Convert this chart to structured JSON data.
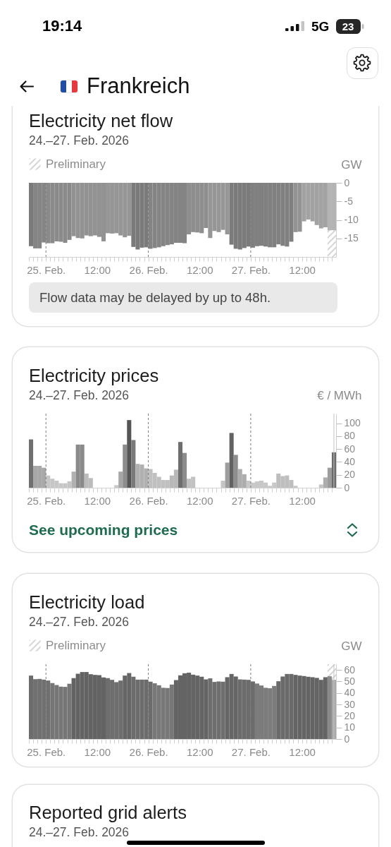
{
  "chart_data": [
    {
      "type": "other",
      "title": "Frankreich",
      "annotations": [
        "19:14",
        "5G",
        "23"
      ]
    },
    {
      "type": "bar",
      "title": "Electricity net flow",
      "subtitle": "24.–27. Feb. 2026",
      "ylabel": "GW",
      "legend": "top left",
      "x": [
        "2026-02-24T20:30",
        "2026-02-24T21:30",
        "2026-02-24T22:30",
        "2026-02-24T23:30",
        "2026-02-25T00:30",
        "2026-02-25T01:30",
        "2026-02-25T02:30",
        "2026-02-25T03:30",
        "2026-02-25T04:30",
        "2026-02-25T05:30",
        "2026-02-25T06:30",
        "2026-02-25T07:30",
        "2026-02-25T08:30",
        "2026-02-25T09:30",
        "2026-02-25T10:30",
        "2026-02-25T11:30",
        "2026-02-25T12:30",
        "2026-02-25T13:30",
        "2026-02-25T14:30",
        "2026-02-25T15:30",
        "2026-02-25T16:30",
        "2026-02-25T17:30",
        "2026-02-25T18:30",
        "2026-02-25T19:30",
        "2026-02-25T20:30",
        "2026-02-25T21:30",
        "2026-02-25T22:30",
        "2026-02-25T23:30",
        "2026-02-26T00:30",
        "2026-02-26T01:30",
        "2026-02-26T02:30",
        "2026-02-26T03:30",
        "2026-02-26T04:30",
        "2026-02-26T05:30",
        "2026-02-26T06:30",
        "2026-02-26T07:30",
        "2026-02-26T08:30",
        "2026-02-26T09:30",
        "2026-02-26T10:30",
        "2026-02-26T11:30",
        "2026-02-26T12:30",
        "2026-02-26T13:30",
        "2026-02-26T14:30",
        "2026-02-26T15:30",
        "2026-02-26T16:30",
        "2026-02-26T17:30",
        "2026-02-26T18:30",
        "2026-02-26T19:30",
        "2026-02-26T20:30",
        "2026-02-26T21:30",
        "2026-02-26T22:30",
        "2026-02-26T23:30",
        "2026-02-27T00:30",
        "2026-02-27T01:30",
        "2026-02-27T02:30",
        "2026-02-27T03:30",
        "2026-02-27T04:30",
        "2026-02-27T05:30",
        "2026-02-27T06:30",
        "2026-02-27T07:30",
        "2026-02-27T08:30",
        "2026-02-27T09:30",
        "2026-02-27T10:30",
        "2026-02-27T11:30",
        "2026-02-27T12:30",
        "2026-02-27T13:30",
        "2026-02-27T14:30",
        "2026-02-27T15:30",
        "2026-02-27T16:30",
        "2026-02-27T17:30",
        "2026-02-27T18:30",
        "2026-02-27T19:30"
      ],
      "values": [
        -17.1,
        -17.7,
        -17.7,
        -16.1,
        -16.3,
        -16.3,
        -15.8,
        -15.9,
        -16.2,
        -15.4,
        -14.4,
        -14.9,
        -15.0,
        -14.2,
        -14.4,
        -14.2,
        -14.6,
        -15.8,
        -13.6,
        -13.7,
        -13.6,
        -14.2,
        -14.7,
        -14.3,
        -17.3,
        -18.0,
        -17.5,
        -17.4,
        -17.8,
        -17.6,
        -17.4,
        -17.1,
        -16.8,
        -16.6,
        -16.2,
        -16.2,
        -16.3,
        -13.9,
        -13.3,
        -13.4,
        -13.6,
        -12.2,
        -14.9,
        -13.0,
        -13.3,
        -12.7,
        -13.9,
        -16.7,
        -17.8,
        -18.0,
        -17.6,
        -17.2,
        -17.5,
        -17.1,
        -17.0,
        -17.2,
        -17.4,
        -17.4,
        -16.6,
        -17.0,
        -17.2,
        -15.9,
        -13.3,
        -13.2,
        -10.4,
        -9.9,
        -10.4,
        -11.4,
        -12.3,
        -12.0,
        -12.8,
        -12.8
      ],
      "colors": [
        "#7a7a7a",
        "#858585",
        "#858585",
        "#858585",
        "#8a8a8a",
        "#8a8a8a",
        "#8a8a8a",
        "#8a8a8a",
        "#8a8a8a",
        "#8a8a8a",
        "#929292",
        "#929292",
        "#929292",
        "#929292",
        "#929292",
        "#929292",
        "#929292",
        "#929292",
        "#969696",
        "#969696",
        "#969696",
        "#969696",
        "#969696",
        "#969696",
        "#7a7a7a",
        "#7a7a7a",
        "#7a7a7a",
        "#7a7a7a",
        "#848484",
        "#848484",
        "#848484",
        "#848484",
        "#848484",
        "#848484",
        "#848484",
        "#848484",
        "#848484",
        "#8e8e8e",
        "#8e8e8e",
        "#8e8e8e",
        "#8e8e8e",
        "#8e8e8e",
        "#969696",
        "#969696",
        "#969696",
        "#969696",
        "#969696",
        "#7b7b7b",
        "#7b7b7b",
        "#7b7b7b",
        "#7b7b7b",
        "#7b7b7b",
        "#808080",
        "#808080",
        "#808080",
        "#808080",
        "#808080",
        "#808080",
        "#808080",
        "#808080",
        "#808080",
        "#808080",
        "#939393",
        "#939393",
        "#a2a2a2",
        "#a2a2a2",
        "#a2a2a2",
        "#a2a2a2",
        "#a2a2a2",
        "#a2a2a2",
        "#b4b4b4",
        "#b4b4b4"
      ],
      "xlim": [
        "2026-02-24T20:00",
        "2026-02-27T20:00"
      ],
      "xticks": [
        {
          "value": "2026-02-24T20:00",
          "label": null
        },
        {
          "value": "2026-02-24T21:00",
          "label": null
        },
        {
          "value": "2026-02-24T22:00",
          "label": null
        },
        {
          "value": "2026-02-24T23:00",
          "label": null
        },
        {
          "value": "2026-02-25T00:00",
          "label": "25. Feb."
        },
        {
          "value": "2026-02-25T01:00",
          "label": null
        },
        {
          "value": "2026-02-25T02:00",
          "label": null
        },
        {
          "value": "2026-02-25T03:00",
          "label": null
        },
        {
          "value": "2026-02-25T04:00",
          "label": null
        },
        {
          "value": "2026-02-25T05:00",
          "label": null
        },
        {
          "value": "2026-02-25T06:00",
          "label": null
        },
        {
          "value": "2026-02-25T07:00",
          "label": null
        },
        {
          "value": "2026-02-25T08:00",
          "label": null
        },
        {
          "value": "2026-02-25T09:00",
          "label": null
        },
        {
          "value": "2026-02-25T10:00",
          "label": null
        },
        {
          "value": "2026-02-25T11:00",
          "label": null
        },
        {
          "value": "2026-02-25T12:00",
          "label": "12:00"
        },
        {
          "value": "2026-02-25T13:00",
          "label": null
        },
        {
          "value": "2026-02-25T14:00",
          "label": null
        },
        {
          "value": "2026-02-25T15:00",
          "label": null
        },
        {
          "value": "2026-02-25T16:00",
          "label": null
        },
        {
          "value": "2026-02-25T17:00",
          "label": null
        },
        {
          "value": "2026-02-25T18:00",
          "label": null
        },
        {
          "value": "2026-02-25T19:00",
          "label": null
        },
        {
          "value": "2026-02-25T20:00",
          "label": null
        },
        {
          "value": "2026-02-25T21:00",
          "label": null
        },
        {
          "value": "2026-02-25T22:00",
          "label": null
        },
        {
          "value": "2026-02-25T23:00",
          "label": null
        },
        {
          "value": "2026-02-26T00:00",
          "label": "26. Feb."
        },
        {
          "value": "2026-02-26T01:00",
          "label": null
        },
        {
          "value": "2026-02-26T02:00",
          "label": null
        },
        {
          "value": "2026-02-26T03:00",
          "label": null
        },
        {
          "value": "2026-02-26T04:00",
          "label": null
        },
        {
          "value": "2026-02-26T05:00",
          "label": null
        },
        {
          "value": "2026-02-26T06:00",
          "label": null
        },
        {
          "value": "2026-02-26T07:00",
          "label": null
        },
        {
          "value": "2026-02-26T08:00",
          "label": null
        },
        {
          "value": "2026-02-26T09:00",
          "label": null
        },
        {
          "value": "2026-02-26T10:00",
          "label": null
        },
        {
          "value": "2026-02-26T11:00",
          "label": null
        },
        {
          "value": "2026-02-26T12:00",
          "label": "12:00"
        },
        {
          "value": "2026-02-26T13:00",
          "label": null
        },
        {
          "value": "2026-02-26T14:00",
          "label": null
        },
        {
          "value": "2026-02-26T15:00",
          "label": null
        },
        {
          "value": "2026-02-26T16:00",
          "label": null
        },
        {
          "value": "2026-02-26T17:00",
          "label": null
        },
        {
          "value": "2026-02-26T18:00",
          "label": null
        },
        {
          "value": "2026-02-26T19:00",
          "label": null
        },
        {
          "value": "2026-02-26T20:00",
          "label": null
        },
        {
          "value": "2026-02-26T21:00",
          "label": null
        },
        {
          "value": "2026-02-26T22:00",
          "label": null
        },
        {
          "value": "2026-02-26T23:00",
          "label": null
        },
        {
          "value": "2026-02-27T00:00",
          "label": "27. Feb."
        },
        {
          "value": "2026-02-27T01:00",
          "label": null
        },
        {
          "value": "2026-02-27T02:00",
          "label": null
        },
        {
          "value": "2026-02-27T03:00",
          "label": null
        },
        {
          "value": "2026-02-27T04:00",
          "label": null
        },
        {
          "value": "2026-02-27T05:00",
          "label": null
        },
        {
          "value": "2026-02-27T06:00",
          "label": null
        },
        {
          "value": "2026-02-27T07:00",
          "label": null
        },
        {
          "value": "2026-02-27T08:00",
          "label": null
        },
        {
          "value": "2026-02-27T09:00",
          "label": null
        },
        {
          "value": "2026-02-27T10:00",
          "label": null
        },
        {
          "value": "2026-02-27T11:00",
          "label": null
        },
        {
          "value": "2026-02-27T12:00",
          "label": "12:00"
        },
        {
          "value": "2026-02-27T13:00",
          "label": null
        },
        {
          "value": "2026-02-27T14:00",
          "label": null
        },
        {
          "value": "2026-02-27T15:00",
          "label": null
        },
        {
          "value": "2026-02-27T16:00",
          "label": null
        },
        {
          "value": "2026-02-27T17:00",
          "label": null
        },
        {
          "value": "2026-02-27T18:00",
          "label": null
        },
        {
          "value": "2026-02-27T19:00",
          "label": null
        }
      ],
      "ylim": [
        -20,
        0
      ],
      "yticks": [
        0,
        -5,
        -10,
        -15
      ],
      "ref_lines": [
        {
          "axis": "x",
          "value": "2026-02-25T00:00",
          "line_style": "dashed",
          "color": "#7c7c7c"
        },
        {
          "axis": "x",
          "value": "2026-02-26T00:00",
          "line_style": "dashed",
          "color": "#7c7c7c"
        },
        {
          "axis": "x",
          "value": "2026-02-27T00:00",
          "line_style": "dashed",
          "color": "#7c7c7c"
        }
      ],
      "bands": [
        {
          "axis": "x",
          "from": "2026-02-27T18:00",
          "to": "2026-02-27T20:00",
          "label": "Preliminary",
          "color": "#c4c4c4"
        }
      ],
      "annotations": [
        "Flow data may be delayed by up to 48h."
      ]
    },
    {
      "type": "bar",
      "title": "Electricity prices",
      "subtitle": "24.–27. Feb. 2026",
      "ylabel": "€ / MWh",
      "x": [
        "2026-02-24T20:30",
        "2026-02-24T21:30",
        "2026-02-24T22:30",
        "2026-02-24T23:30",
        "2026-02-25T00:30",
        "2026-02-25T01:30",
        "2026-02-25T02:30",
        "2026-02-25T03:30",
        "2026-02-25T04:30",
        "2026-02-25T05:30",
        "2026-02-25T06:30",
        "2026-02-25T07:30",
        "2026-02-25T08:30",
        "2026-02-25T09:30",
        "2026-02-25T10:30",
        "2026-02-25T11:30",
        "2026-02-25T12:30",
        "2026-02-25T13:30",
        "2026-02-25T14:30",
        "2026-02-25T15:30",
        "2026-02-25T16:30",
        "2026-02-25T17:30",
        "2026-02-25T18:30",
        "2026-02-25T19:30",
        "2026-02-25T20:30",
        "2026-02-25T21:30",
        "2026-02-25T22:30",
        "2026-02-25T23:30",
        "2026-02-26T00:30",
        "2026-02-26T01:30",
        "2026-02-26T02:30",
        "2026-02-26T03:30",
        "2026-02-26T04:30",
        "2026-02-26T05:30",
        "2026-02-26T06:30",
        "2026-02-26T07:30",
        "2026-02-26T08:30",
        "2026-02-26T09:30",
        "2026-02-26T10:30",
        "2026-02-26T11:30",
        "2026-02-26T12:30",
        "2026-02-26T13:30",
        "2026-02-26T14:30",
        "2026-02-26T15:30",
        "2026-02-26T16:30",
        "2026-02-26T17:30",
        "2026-02-26T18:30",
        "2026-02-26T19:30",
        "2026-02-26T20:30",
        "2026-02-26T21:30",
        "2026-02-26T22:30",
        "2026-02-26T23:30",
        "2026-02-27T00:30",
        "2026-02-27T01:30",
        "2026-02-27T02:30",
        "2026-02-27T03:30",
        "2026-02-27T04:30",
        "2026-02-27T05:30",
        "2026-02-27T06:30",
        "2026-02-27T07:30",
        "2026-02-27T08:30",
        "2026-02-27T09:30",
        "2026-02-27T10:30",
        "2026-02-27T11:30",
        "2026-02-27T12:30",
        "2026-02-27T13:30",
        "2026-02-27T14:30",
        "2026-02-27T15:30",
        "2026-02-27T16:30",
        "2026-02-27T17:30",
        "2026-02-27T18:30",
        "2026-02-27T19:30"
      ],
      "values": [
        75,
        34,
        34,
        31,
        19,
        14,
        11,
        7,
        7,
        10,
        25,
        67,
        67,
        22,
        15,
        0,
        0,
        0,
        0,
        0,
        4,
        25,
        67,
        105,
        74,
        37,
        36,
        30,
        29,
        23,
        17,
        12,
        12,
        19,
        28,
        71,
        54,
        14,
        17,
        0,
        0,
        0,
        0,
        0,
        0,
        11,
        39,
        85,
        51,
        29,
        21,
        11,
        8,
        10,
        11,
        8,
        3,
        8,
        22,
        18,
        19,
        12,
        3,
        0,
        0,
        0,
        0,
        0,
        5,
        16,
        31,
        55
      ],
      "colors": [
        "#707070",
        "#a8a8a8",
        "#a8a8a8",
        "#a8a8a8",
        "#c6c6c6",
        "#c6c6c6",
        "#c6c6c6",
        "#c6c6c6",
        "#c6c6c6",
        "#c6c6c6",
        "#b0b0b0",
        "#8a8a8a",
        "#8a8a8a",
        "#bcbcbc",
        "#bcbcbc",
        "#c6c6c6",
        "#c6c6c6",
        "#c6c6c6",
        "#c6c6c6",
        "#c6c6c6",
        "#c8c8c8",
        "#a6a6a6",
        "#8c8c8c",
        "#555555",
        "#7a7a7a",
        "#b0b0b0",
        "#b0b0b0",
        "#b0b0b0",
        "#c0c0c0",
        "#c0c0c0",
        "#c0c0c0",
        "#c0c0c0",
        "#c0c0c0",
        "#b8b8b8",
        "#b8b8b8",
        "#6e6e6e",
        "#8c8c8c",
        "#c2c2c2",
        "#c2c2c2",
        "#c6c6c6",
        "#c6c6c6",
        "#c6c6c6",
        "#c6c6c6",
        "#c6c6c6",
        "#c6c6c6",
        "#c4c4c4",
        "#9c9c9c",
        "#626262",
        "#8e8e8e",
        "#adadad",
        "#adadad",
        "#c8c8c8",
        "#c8c8c8",
        "#c8c8c8",
        "#c8c8c8",
        "#c8c8c8",
        "#c8c8c8",
        "#c8c8c8",
        "#bebebe",
        "#bebebe",
        "#bebebe",
        "#bebebe",
        "#c6c6c6",
        "#c6c6c6",
        "#c6c6c6",
        "#c6c6c6",
        "#c6c6c6",
        "#c6c6c6",
        "#c4c4c4",
        "#adadad",
        "#9c9c9c",
        "#6a6a6a"
      ],
      "xlim": [
        "2026-02-24T20:00",
        "2026-02-27T20:00"
      ],
      "xticks": [
        {
          "value": "2026-02-24T20:00",
          "label": null
        },
        {
          "value": "2026-02-24T21:00",
          "label": null
        },
        {
          "value": "2026-02-24T22:00",
          "label": null
        },
        {
          "value": "2026-02-24T23:00",
          "label": null
        },
        {
          "value": "2026-02-25T00:00",
          "label": "25. Feb."
        },
        {
          "value": "2026-02-25T01:00",
          "label": null
        },
        {
          "value": "2026-02-25T02:00",
          "label": null
        },
        {
          "value": "2026-02-25T03:00",
          "label": null
        },
        {
          "value": "2026-02-25T04:00",
          "label": null
        },
        {
          "value": "2026-02-25T05:00",
          "label": null
        },
        {
          "value": "2026-02-25T06:00",
          "label": null
        },
        {
          "value": "2026-02-25T07:00",
          "label": null
        },
        {
          "value": "2026-02-25T08:00",
          "label": null
        },
        {
          "value": "2026-02-25T09:00",
          "label": null
        },
        {
          "value": "2026-02-25T10:00",
          "label": null
        },
        {
          "value": "2026-02-25T11:00",
          "label": null
        },
        {
          "value": "2026-02-25T12:00",
          "label": "12:00"
        },
        {
          "value": "2026-02-25T13:00",
          "label": null
        },
        {
          "value": "2026-02-25T14:00",
          "label": null
        },
        {
          "value": "2026-02-25T15:00",
          "label": null
        },
        {
          "value": "2026-02-25T16:00",
          "label": null
        },
        {
          "value": "2026-02-25T17:00",
          "label": null
        },
        {
          "value": "2026-02-25T18:00",
          "label": null
        },
        {
          "value": "2026-02-25T19:00",
          "label": null
        },
        {
          "value": "2026-02-25T20:00",
          "label": null
        },
        {
          "value": "2026-02-25T21:00",
          "label": null
        },
        {
          "value": "2026-02-25T22:00",
          "label": null
        },
        {
          "value": "2026-02-25T23:00",
          "label": null
        },
        {
          "value": "2026-02-26T00:00",
          "label": "26. Feb."
        },
        {
          "value": "2026-02-26T01:00",
          "label": null
        },
        {
          "value": "2026-02-26T02:00",
          "label": null
        },
        {
          "value": "2026-02-26T03:00",
          "label": null
        },
        {
          "value": "2026-02-26T04:00",
          "label": null
        },
        {
          "value": "2026-02-26T05:00",
          "label": null
        },
        {
          "value": "2026-02-26T06:00",
          "label": null
        },
        {
          "value": "2026-02-26T07:00",
          "label": null
        },
        {
          "value": "2026-02-26T08:00",
          "label": null
        },
        {
          "value": "2026-02-26T09:00",
          "label": null
        },
        {
          "value": "2026-02-26T10:00",
          "label": null
        },
        {
          "value": "2026-02-26T11:00",
          "label": null
        },
        {
          "value": "2026-02-26T12:00",
          "label": "12:00"
        },
        {
          "value": "2026-02-26T13:00",
          "label": null
        },
        {
          "value": "2026-02-26T14:00",
          "label": null
        },
        {
          "value": "2026-02-26T15:00",
          "label": null
        },
        {
          "value": "2026-02-26T16:00",
          "label": null
        },
        {
          "value": "2026-02-26T17:00",
          "label": null
        },
        {
          "value": "2026-02-26T18:00",
          "label": null
        },
        {
          "value": "2026-02-26T19:00",
          "label": null
        },
        {
          "value": "2026-02-26T20:00",
          "label": null
        },
        {
          "value": "2026-02-26T21:00",
          "label": null
        },
        {
          "value": "2026-02-26T22:00",
          "label": null
        },
        {
          "value": "2026-02-26T23:00",
          "label": null
        },
        {
          "value": "2026-02-27T00:00",
          "label": "27. Feb."
        },
        {
          "value": "2026-02-27T01:00",
          "label": null
        },
        {
          "value": "2026-02-27T02:00",
          "label": null
        },
        {
          "value": "2026-02-27T03:00",
          "label": null
        },
        {
          "value": "2026-02-27T04:00",
          "label": null
        },
        {
          "value": "2026-02-27T05:00",
          "label": null
        },
        {
          "value": "2026-02-27T06:00",
          "label": null
        },
        {
          "value": "2026-02-27T07:00",
          "label": null
        },
        {
          "value": "2026-02-27T08:00",
          "label": null
        },
        {
          "value": "2026-02-27T09:00",
          "label": null
        },
        {
          "value": "2026-02-27T10:00",
          "label": null
        },
        {
          "value": "2026-02-27T11:00",
          "label": null
        },
        {
          "value": "2026-02-27T12:00",
          "label": "12:00"
        },
        {
          "value": "2026-02-27T13:00",
          "label": null
        },
        {
          "value": "2026-02-27T14:00",
          "label": null
        },
        {
          "value": "2026-02-27T15:00",
          "label": null
        },
        {
          "value": "2026-02-27T16:00",
          "label": null
        },
        {
          "value": "2026-02-27T17:00",
          "label": null
        },
        {
          "value": "2026-02-27T18:00",
          "label": null
        },
        {
          "value": "2026-02-27T19:00",
          "label": null
        }
      ],
      "ylim": [
        0,
        115
      ],
      "yticks": [
        0,
        20,
        40,
        60,
        80,
        100
      ],
      "ref_lines": [
        {
          "axis": "x",
          "value": "2026-02-25T00:00",
          "line_style": "dashed",
          "color": "#7c7c7c"
        },
        {
          "axis": "x",
          "value": "2026-02-26T00:00",
          "line_style": "dashed",
          "color": "#7c7c7c"
        },
        {
          "axis": "x",
          "value": "2026-02-27T00:00",
          "line_style": "dashed",
          "color": "#7c7c7c"
        },
        {
          "axis": "x",
          "value": "2026-02-27T19:30",
          "line_style": "solid",
          "color": "#c4c4c4"
        }
      ],
      "annotations": [
        "See upcoming prices"
      ]
    },
    {
      "type": "bar",
      "title": "Electricity load",
      "subtitle": "24.–27. Feb. 2026",
      "ylabel": "GW",
      "legend": "top left",
      "x": [
        "2026-02-24T20:30",
        "2026-02-24T21:30",
        "2026-02-24T22:30",
        "2026-02-24T23:30",
        "2026-02-25T00:30",
        "2026-02-25T01:30",
        "2026-02-25T02:30",
        "2026-02-25T03:30",
        "2026-02-25T04:30",
        "2026-02-25T05:30",
        "2026-02-25T06:30",
        "2026-02-25T07:30",
        "2026-02-25T08:30",
        "2026-02-25T09:30",
        "2026-02-25T10:30",
        "2026-02-25T11:30",
        "2026-02-25T12:30",
        "2026-02-25T13:30",
        "2026-02-25T14:30",
        "2026-02-25T15:30",
        "2026-02-25T16:30",
        "2026-02-25T17:30",
        "2026-02-25T18:30",
        "2026-02-25T19:30",
        "2026-02-25T20:30",
        "2026-02-25T21:30",
        "2026-02-25T22:30",
        "2026-02-25T23:30",
        "2026-02-26T00:30",
        "2026-02-26T01:30",
        "2026-02-26T02:30",
        "2026-02-26T03:30",
        "2026-02-26T04:30",
        "2026-02-26T05:30",
        "2026-02-26T06:30",
        "2026-02-26T07:30",
        "2026-02-26T08:30",
        "2026-02-26T09:30",
        "2026-02-26T10:30",
        "2026-02-26T11:30",
        "2026-02-26T12:30",
        "2026-02-26T13:30",
        "2026-02-26T14:30",
        "2026-02-26T15:30",
        "2026-02-26T16:30",
        "2026-02-26T17:30",
        "2026-02-26T18:30",
        "2026-02-26T19:30",
        "2026-02-26T20:30",
        "2026-02-26T21:30",
        "2026-02-26T22:30",
        "2026-02-26T23:30",
        "2026-02-27T00:30",
        "2026-02-27T01:30",
        "2026-02-27T02:30",
        "2026-02-27T03:30",
        "2026-02-27T04:30",
        "2026-02-27T05:30",
        "2026-02-27T06:30",
        "2026-02-27T07:30",
        "2026-02-27T08:30",
        "2026-02-27T09:30",
        "2026-02-27T10:30",
        "2026-02-27T11:30",
        "2026-02-27T12:30",
        "2026-02-27T13:30",
        "2026-02-27T14:30",
        "2026-02-27T15:30",
        "2026-02-27T16:30",
        "2026-02-27T17:30",
        "2026-02-27T18:30",
        "2026-02-27T19:30"
      ],
      "values": [
        55.1,
        52.0,
        52.2,
        51.6,
        50.8,
        48.6,
        46.9,
        45.5,
        45.3,
        48.0,
        52.9,
        56.7,
        58.2,
        58.2,
        56.3,
        55.7,
        55.5,
        53.5,
        52.9,
        51.4,
        49.4,
        50.8,
        55.1,
        57.3,
        54.1,
        51.6,
        51.6,
        51.6,
        49.8,
        48.4,
        46.7,
        44.5,
        44.3,
        47.3,
        51.2,
        55.3,
        57.1,
        57.6,
        55.9,
        55.1,
        54.1,
        51.8,
        52.7,
        49.6,
        50.0,
        49.8,
        53.7,
        56.5,
        54.3,
        51.8,
        51.6,
        51.4,
        50.0,
        48.2,
        46.5,
        44.5,
        44.1,
        46.1,
        50.2,
        54.3,
        56.5,
        56.5,
        55.7,
        55.1,
        54.7,
        54.1,
        53.7,
        53.1,
        51.4,
        53.7,
        54.5,
        51.4
      ],
      "colors": [
        "#6c6c6c",
        "#707070",
        "#707070",
        "#707070",
        "#707070",
        "#767676",
        "#767676",
        "#767676",
        "#767676",
        "#767676",
        "#636363",
        "#636363",
        "#636363",
        "#636363",
        "#636363",
        "#636363",
        "#636363",
        "#636363",
        "#6e6e6e",
        "#6e6e6e",
        "#6e6e6e",
        "#6e6e6e",
        "#666666",
        "#666666",
        "#6c6c6c",
        "#6c6c6c",
        "#6c6c6c",
        "#6c6c6c",
        "#6c6c6c",
        "#787878",
        "#787878",
        "#787878",
        "#787878",
        "#787878",
        "#646464",
        "#646464",
        "#646464",
        "#646464",
        "#646464",
        "#646464",
        "#646464",
        "#646464",
        "#6e6e6e",
        "#6e6e6e",
        "#6e6e6e",
        "#6e6e6e",
        "#666666",
        "#666666",
        "#666666",
        "#6c6c6c",
        "#6c6c6c",
        "#6c6c6c",
        "#6c6c6c",
        "#7c7c7c",
        "#7c7c7c",
        "#7c7c7c",
        "#7c7c7c",
        "#7c7c7c",
        "#6a6a6a",
        "#6a6a6a",
        "#6a6a6a",
        "#6a6a6a",
        "#646464",
        "#646464",
        "#646464",
        "#646464",
        "#646464",
        "#646464",
        "#646464",
        "#646464",
        "#8a8a8a",
        "#a8a8a8"
      ],
      "xlim": [
        "2026-02-24T20:00",
        "2026-02-27T20:00"
      ],
      "xticks": [
        {
          "value": "2026-02-24T20:00",
          "label": null
        },
        {
          "value": "2026-02-24T21:00",
          "label": null
        },
        {
          "value": "2026-02-24T22:00",
          "label": null
        },
        {
          "value": "2026-02-24T23:00",
          "label": null
        },
        {
          "value": "2026-02-25T00:00",
          "label": "25. Feb."
        },
        {
          "value": "2026-02-25T01:00",
          "label": null
        },
        {
          "value": "2026-02-25T02:00",
          "label": null
        },
        {
          "value": "2026-02-25T03:00",
          "label": null
        },
        {
          "value": "2026-02-25T04:00",
          "label": null
        },
        {
          "value": "2026-02-25T05:00",
          "label": null
        },
        {
          "value": "2026-02-25T06:00",
          "label": null
        },
        {
          "value": "2026-02-25T07:00",
          "label": null
        },
        {
          "value": "2026-02-25T08:00",
          "label": null
        },
        {
          "value": "2026-02-25T09:00",
          "label": null
        },
        {
          "value": "2026-02-25T10:00",
          "label": null
        },
        {
          "value": "2026-02-25T11:00",
          "label": null
        },
        {
          "value": "2026-02-25T12:00",
          "label": "12:00"
        },
        {
          "value": "2026-02-25T13:00",
          "label": null
        },
        {
          "value": "2026-02-25T14:00",
          "label": null
        },
        {
          "value": "2026-02-25T15:00",
          "label": null
        },
        {
          "value": "2026-02-25T16:00",
          "label": null
        },
        {
          "value": "2026-02-25T17:00",
          "label": null
        },
        {
          "value": "2026-02-25T18:00",
          "label": null
        },
        {
          "value": "2026-02-25T19:00",
          "label": null
        },
        {
          "value": "2026-02-25T20:00",
          "label": null
        },
        {
          "value": "2026-02-25T21:00",
          "label": null
        },
        {
          "value": "2026-02-25T22:00",
          "label": null
        },
        {
          "value": "2026-02-25T23:00",
          "label": null
        },
        {
          "value": "2026-02-26T00:00",
          "label": "26. Feb."
        },
        {
          "value": "2026-02-26T01:00",
          "label": null
        },
        {
          "value": "2026-02-26T02:00",
          "label": null
        },
        {
          "value": "2026-02-26T03:00",
          "label": null
        },
        {
          "value": "2026-02-26T04:00",
          "label": null
        },
        {
          "value": "2026-02-26T05:00",
          "label": null
        },
        {
          "value": "2026-02-26T06:00",
          "label": null
        },
        {
          "value": "2026-02-26T07:00",
          "label": null
        },
        {
          "value": "2026-02-26T08:00",
          "label": null
        },
        {
          "value": "2026-02-26T09:00",
          "label": null
        },
        {
          "value": "2026-02-26T10:00",
          "label": null
        },
        {
          "value": "2026-02-26T11:00",
          "label": null
        },
        {
          "value": "2026-02-26T12:00",
          "label": "12:00"
        },
        {
          "value": "2026-02-26T13:00",
          "label": null
        },
        {
          "value": "2026-02-26T14:00",
          "label": null
        },
        {
          "value": "2026-02-26T15:00",
          "label": null
        },
        {
          "value": "2026-02-26T16:00",
          "label": null
        },
        {
          "value": "2026-02-26T17:00",
          "label": null
        },
        {
          "value": "2026-02-26T18:00",
          "label": null
        },
        {
          "value": "2026-02-26T19:00",
          "label": null
        },
        {
          "value": "2026-02-26T20:00",
          "label": null
        },
        {
          "value": "2026-02-26T21:00",
          "label": null
        },
        {
          "value": "2026-02-26T22:00",
          "label": null
        },
        {
          "value": "2026-02-26T23:00",
          "label": null
        },
        {
          "value": "2026-02-27T00:00",
          "label": "27. Feb."
        },
        {
          "value": "2026-02-27T01:00",
          "label": null
        },
        {
          "value": "2026-02-27T02:00",
          "label": null
        },
        {
          "value": "2026-02-27T03:00",
          "label": null
        },
        {
          "value": "2026-02-27T04:00",
          "label": null
        },
        {
          "value": "2026-02-27T05:00",
          "label": null
        },
        {
          "value": "2026-02-27T06:00",
          "label": null
        },
        {
          "value": "2026-02-27T07:00",
          "label": null
        },
        {
          "value": "2026-02-27T08:00",
          "label": null
        },
        {
          "value": "2026-02-27T09:00",
          "label": null
        },
        {
          "value": "2026-02-27T10:00",
          "label": null
        },
        {
          "value": "2026-02-27T11:00",
          "label": null
        },
        {
          "value": "2026-02-27T12:00",
          "label": "12:00"
        },
        {
          "value": "2026-02-27T13:00",
          "label": null
        },
        {
          "value": "2026-02-27T14:00",
          "label": null
        },
        {
          "value": "2026-02-27T15:00",
          "label": null
        },
        {
          "value": "2026-02-27T16:00",
          "label": null
        },
        {
          "value": "2026-02-27T17:00",
          "label": null
        },
        {
          "value": "2026-02-27T18:00",
          "label": null
        },
        {
          "value": "2026-02-27T19:00",
          "label": null
        }
      ],
      "ylim": [
        0,
        65
      ],
      "yticks": [
        0,
        10,
        20,
        30,
        40,
        50,
        60
      ],
      "ref_lines": [
        {
          "axis": "x",
          "value": "2026-02-25T00:00",
          "line_style": "dashed",
          "color": "#7c7c7c"
        },
        {
          "axis": "x",
          "value": "2026-02-26T00:00",
          "line_style": "dashed",
          "color": "#7c7c7c"
        },
        {
          "axis": "x",
          "value": "2026-02-27T00:00",
          "line_style": "dashed",
          "color": "#7c7c7c"
        },
        {
          "axis": "x",
          "value": "2026-02-27T19:30",
          "line_style": "solid",
          "color": "#c4c4c4"
        }
      ],
      "bands": [
        {
          "axis": "x",
          "from": "2026-02-27T18:00",
          "to": "2026-02-27T20:00",
          "label": "Preliminary",
          "color": "#c4c4c4"
        }
      ]
    },
    {
      "type": "other",
      "title": "Reported grid alerts",
      "subtitle": "24.–27. Feb. 2026"
    }
  ]
}
